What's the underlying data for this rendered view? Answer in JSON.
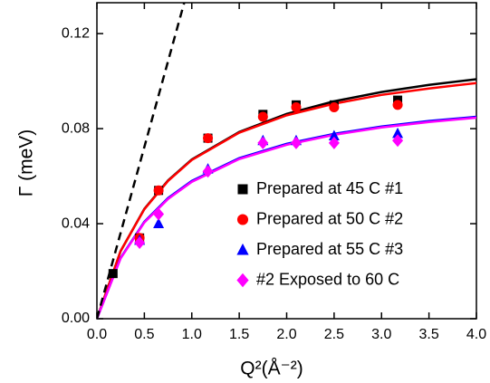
{
  "chart_data": {
    "type": "scatter",
    "xlabel": "Q²(Å⁻²)",
    "ylabel": "Γ (meV)",
    "xlim": [
      0,
      4
    ],
    "ylim": [
      0,
      0.133
    ],
    "xticks": [
      {
        "value": 0,
        "label": "0.0"
      },
      {
        "value": 0.5,
        "label": "0.5"
      },
      {
        "value": 1,
        "label": "1.0"
      },
      {
        "value": 1.5,
        "label": "1.5"
      },
      {
        "value": 2,
        "label": "2.0"
      },
      {
        "value": 2.5,
        "label": "2.5"
      },
      {
        "value": 3,
        "label": "3.0"
      },
      {
        "value": 3.5,
        "label": "3.5"
      },
      {
        "value": 4,
        "label": "4.0"
      }
    ],
    "yticks": [
      {
        "value": 0,
        "label": "0.00"
      },
      {
        "value": 0.04,
        "label": "0.04"
      },
      {
        "value": 0.08,
        "label": "0.08"
      },
      {
        "value": 0.12,
        "label": "0.12"
      }
    ],
    "legend": "lower right",
    "series": [
      {
        "name": "Prepared at 45 C  #1",
        "color": "#000000",
        "marker": "square",
        "x": [
          0.17,
          0.45,
          0.65,
          1.17,
          1.75,
          2.1,
          2.5,
          3.17
        ],
        "values": [
          0.019,
          0.034,
          0.054,
          0.076,
          0.086,
          0.09,
          0.09,
          0.092
        ]
      },
      {
        "name": "Prepared at 50 C  #2",
        "color": "#ff0000",
        "marker": "circle",
        "x": [
          0.45,
          0.65,
          1.17,
          1.75,
          2.1,
          2.5,
          3.17
        ],
        "values": [
          0.034,
          0.054,
          0.076,
          0.085,
          0.089,
          0.089,
          0.09
        ]
      },
      {
        "name": "Prepared at 55 C  #3",
        "color": "#0000ff",
        "marker": "triangle",
        "x": [
          0.45,
          0.65,
          1.17,
          1.75,
          2.1,
          2.5,
          3.17
        ],
        "values": [
          0.033,
          0.04,
          0.063,
          0.075,
          0.075,
          0.077,
          0.078
        ]
      },
      {
        "name": "#2 Exposed to 60 C",
        "color": "#ff00ff",
        "marker": "diamond",
        "x": [
          0.45,
          0.65,
          1.17,
          1.75,
          2.1,
          2.5,
          3.17
        ],
        "values": [
          0.032,
          0.044,
          0.062,
          0.074,
          0.074,
          0.074,
          0.075
        ]
      }
    ],
    "fits": [
      {
        "color": "#000000",
        "dash": false,
        "x": [
          0,
          0.25,
          0.5,
          0.75,
          1,
          1.5,
          2,
          2.5,
          3,
          3.5,
          4
        ],
        "values": [
          0,
          0.0285,
          0.0462,
          0.0582,
          0.067,
          0.0786,
          0.0862,
          0.0915,
          0.0954,
          0.0984,
          0.1008
        ]
      },
      {
        "color": "#ff0000",
        "dash": false,
        "x": [
          0,
          0.25,
          0.5,
          0.75,
          1,
          1.5,
          2,
          2.5,
          3,
          3.5,
          4
        ],
        "values": [
          0,
          0.0285,
          0.0461,
          0.058,
          0.0668,
          0.0783,
          0.0856,
          0.0905,
          0.0942,
          0.0969,
          0.0992
        ]
      },
      {
        "color": "#0000ff",
        "dash": false,
        "x": [
          0,
          0.25,
          0.5,
          0.75,
          1,
          1.5,
          2,
          2.5,
          3,
          3.5,
          4
        ],
        "values": [
          0,
          0.0256,
          0.0408,
          0.0508,
          0.058,
          0.0676,
          0.0736,
          0.0778,
          0.0809,
          0.0832,
          0.085
        ]
      },
      {
        "color": "#ff00ff",
        "dash": false,
        "x": [
          0,
          0.25,
          0.5,
          0.75,
          1,
          1.5,
          2,
          2.5,
          3,
          3.5,
          4
        ],
        "values": [
          0,
          0.0254,
          0.0405,
          0.0504,
          0.0576,
          0.0672,
          0.0732,
          0.0774,
          0.0805,
          0.0828,
          0.0846
        ]
      },
      {
        "color": "#000000",
        "dash": true,
        "x": [
          0,
          0.92
        ],
        "values": [
          0,
          0.133
        ]
      }
    ]
  }
}
